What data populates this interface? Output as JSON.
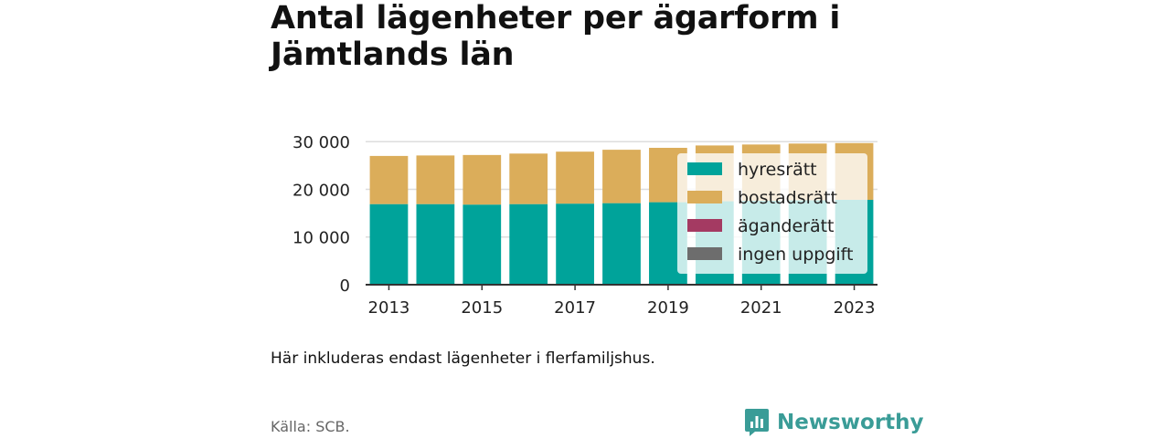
{
  "title": "Antal lägenheter per ägarform i Jämtlands län",
  "note": "Här inkluderas endast lägenheter i flerfamiljshus.",
  "source": "Källa: SCB.",
  "brand": "Newsworthy",
  "colors": {
    "hyresratt": "#00a39a",
    "bostadsratt": "#dbad5a",
    "aganderatt": "#a43a62",
    "ingen_uppgift": "#6d6d6d",
    "brand": "#3a9c97"
  },
  "chart_data": {
    "type": "bar",
    "stacked": true,
    "categories": [
      "2013",
      "2014",
      "2015",
      "2016",
      "2017",
      "2018",
      "2019",
      "2020",
      "2021",
      "2022",
      "2023"
    ],
    "x_tick_labels": [
      "2013",
      "2015",
      "2017",
      "2019",
      "2021",
      "2023"
    ],
    "y_ticks": [
      0,
      10000,
      20000,
      30000
    ],
    "y_tick_labels": [
      "0",
      "10 000",
      "20 000",
      "30 000"
    ],
    "ylim": [
      0,
      31000
    ],
    "grid": true,
    "legend_position": "right-inside",
    "series": [
      {
        "name": "hyresrätt",
        "color": "#00a39a",
        "values": [
          16900,
          16900,
          16800,
          16900,
          17000,
          17100,
          17300,
          17500,
          17600,
          17700,
          17800
        ]
      },
      {
        "name": "bostadsrätt",
        "color": "#dbad5a",
        "values": [
          10100,
          10200,
          10400,
          10600,
          10900,
          11200,
          11400,
          11700,
          11800,
          11900,
          11900
        ]
      },
      {
        "name": "äganderätt",
        "color": "#a43a62",
        "values": [
          0,
          0,
          0,
          0,
          0,
          0,
          0,
          0,
          0,
          0,
          0
        ]
      },
      {
        "name": "ingen uppgift",
        "color": "#6d6d6d",
        "values": [
          0,
          0,
          0,
          0,
          0,
          0,
          0,
          0,
          0,
          0,
          0
        ]
      }
    ]
  }
}
